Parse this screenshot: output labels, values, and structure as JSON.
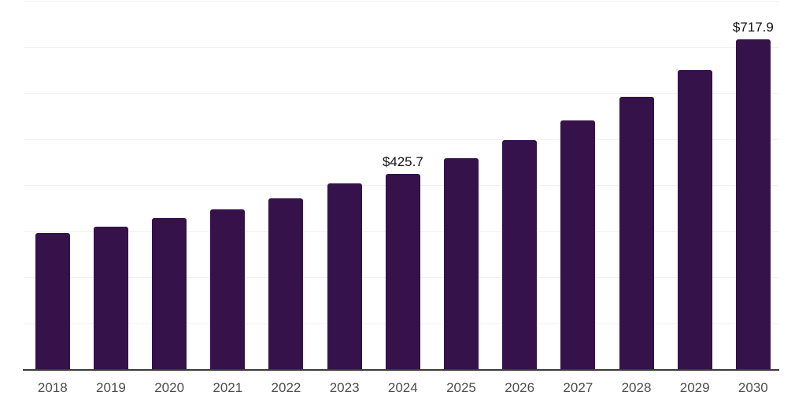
{
  "chart_data": {
    "type": "bar",
    "title": "",
    "xlabel": "",
    "ylabel": "",
    "categories": [
      "2018",
      "2019",
      "2020",
      "2021",
      "2022",
      "2023",
      "2024",
      "2025",
      "2026",
      "2027",
      "2028",
      "2029",
      "2030"
    ],
    "values": [
      297.0,
      310.5,
      329.3,
      348.8,
      373.1,
      405.0,
      425.7,
      460.0,
      498.4,
      542.7,
      592.8,
      651.7,
      717.9
    ],
    "data_labels": [
      "",
      "",
      "",
      "",
      "",
      "",
      "$425.7",
      "",
      "",
      "",
      "",
      "",
      "$717.9"
    ],
    "ylim": [
      0,
      800
    ],
    "gridline_step": 100,
    "grid": "horizontal",
    "legend": "none",
    "colors": {
      "bar": "#35124A",
      "gridline": "#F0F0F0",
      "axis_line": "#3A3A3A",
      "tick_label": "#4D4D4D",
      "data_label": "#111111",
      "background": "#FFFFFF"
    }
  }
}
